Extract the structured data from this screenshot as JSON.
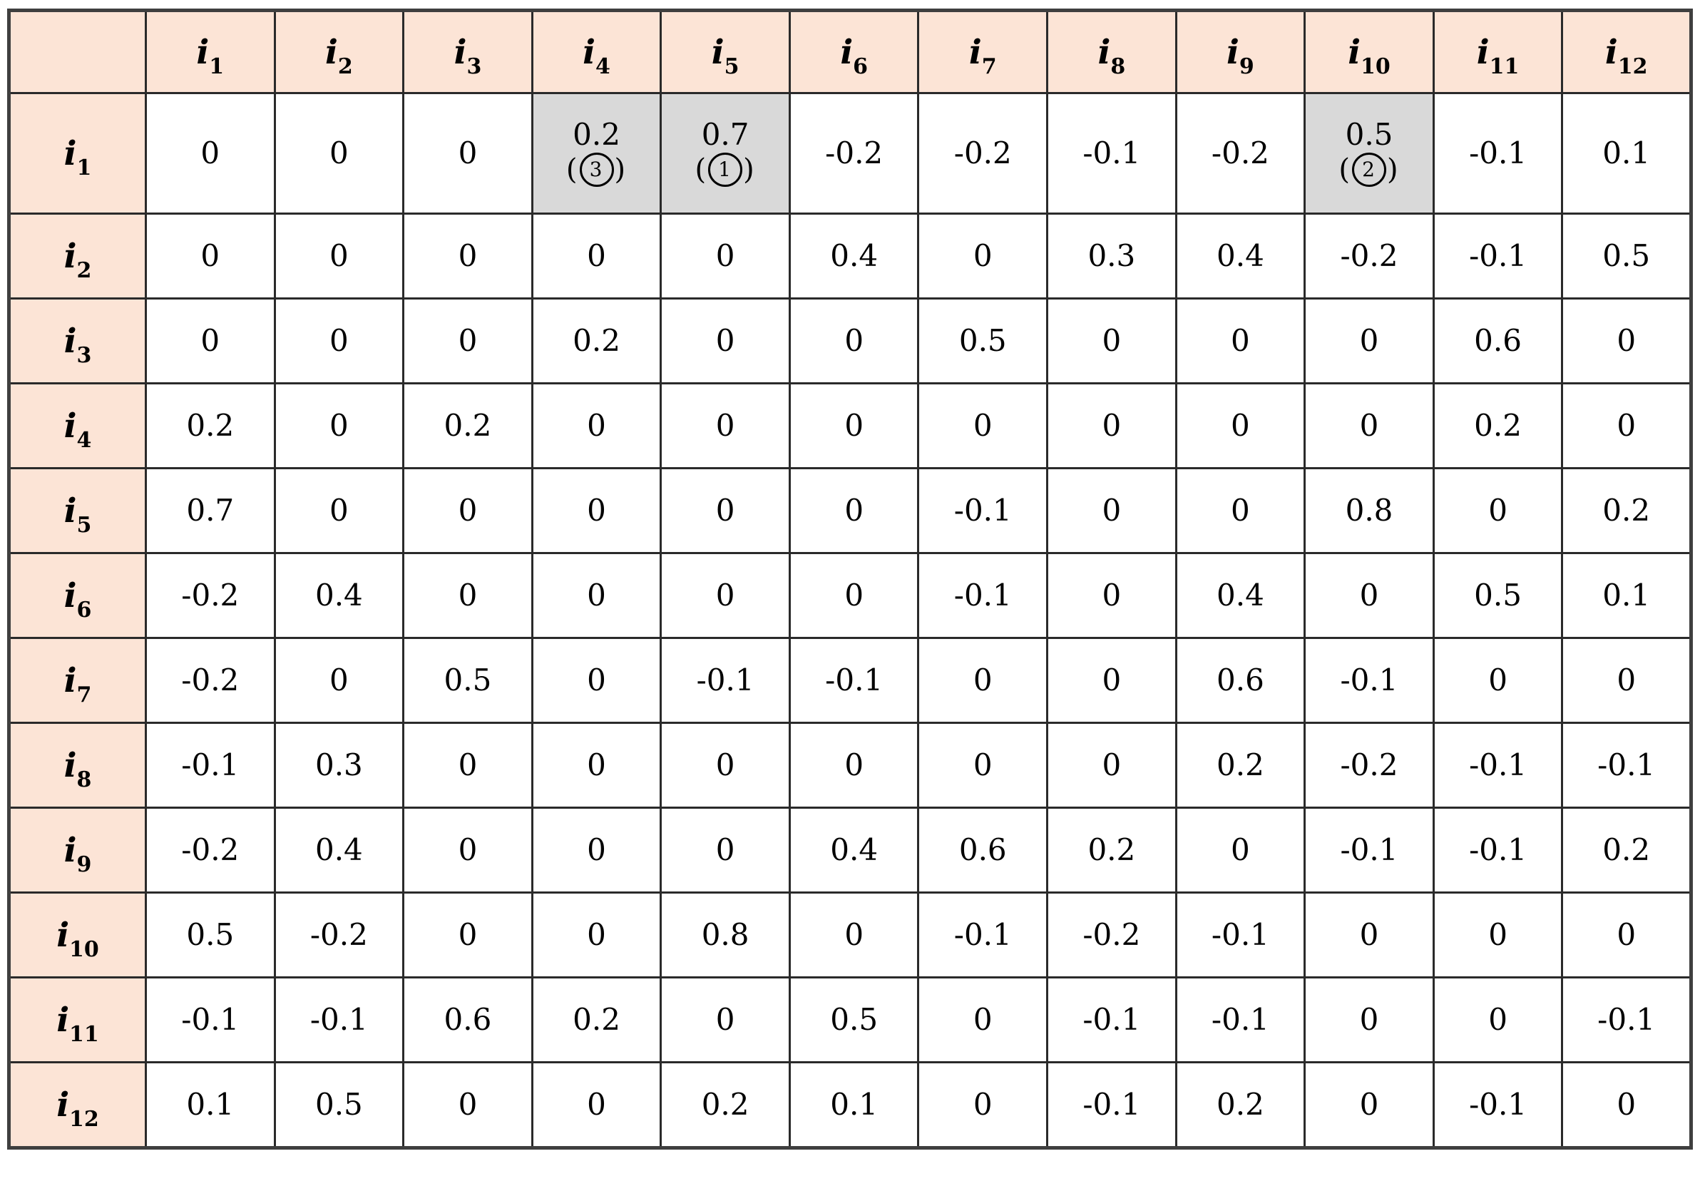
{
  "table": {
    "corner_label": "",
    "note_open": "(",
    "note_close": ")",
    "colors": {
      "header_bg": "#fce4d6",
      "highlight_bg": "#d9d9d9",
      "cell_bg": "#ffffff",
      "border": "#2a2a2a",
      "text": "#000000"
    },
    "col_headers": [
      {
        "base": "i",
        "sub": "1"
      },
      {
        "base": "i",
        "sub": "2"
      },
      {
        "base": "i",
        "sub": "3"
      },
      {
        "base": "i",
        "sub": "4"
      },
      {
        "base": "i",
        "sub": "5"
      },
      {
        "base": "i",
        "sub": "6"
      },
      {
        "base": "i",
        "sub": "7"
      },
      {
        "base": "i",
        "sub": "8"
      },
      {
        "base": "i",
        "sub": "9"
      },
      {
        "base": "i",
        "sub": "10"
      },
      {
        "base": "i",
        "sub": "11"
      },
      {
        "base": "i",
        "sub": "12"
      }
    ],
    "rows": [
      {
        "header": {
          "base": "i",
          "sub": "1"
        },
        "cells": [
          {
            "v": "0"
          },
          {
            "v": "0"
          },
          {
            "v": "0"
          },
          {
            "v": "0.2",
            "note_rank": "3",
            "highlight": true
          },
          {
            "v": "0.7",
            "note_rank": "1",
            "highlight": true
          },
          {
            "v": "-0.2"
          },
          {
            "v": "-0.2"
          },
          {
            "v": "-0.1"
          },
          {
            "v": "-0.2"
          },
          {
            "v": "0.5",
            "note_rank": "2",
            "highlight": true
          },
          {
            "v": "-0.1"
          },
          {
            "v": "0.1"
          }
        ]
      },
      {
        "header": {
          "base": "i",
          "sub": "2"
        },
        "cells": [
          {
            "v": "0"
          },
          {
            "v": "0"
          },
          {
            "v": "0"
          },
          {
            "v": "0"
          },
          {
            "v": "0"
          },
          {
            "v": "0.4"
          },
          {
            "v": "0"
          },
          {
            "v": "0.3"
          },
          {
            "v": "0.4"
          },
          {
            "v": "-0.2"
          },
          {
            "v": "-0.1"
          },
          {
            "v": "0.5"
          }
        ]
      },
      {
        "header": {
          "base": "i",
          "sub": "3"
        },
        "cells": [
          {
            "v": "0"
          },
          {
            "v": "0"
          },
          {
            "v": "0"
          },
          {
            "v": "0.2"
          },
          {
            "v": "0"
          },
          {
            "v": "0"
          },
          {
            "v": "0.5"
          },
          {
            "v": "0"
          },
          {
            "v": "0"
          },
          {
            "v": "0"
          },
          {
            "v": "0.6"
          },
          {
            "v": "0"
          }
        ]
      },
      {
        "header": {
          "base": "i",
          "sub": "4"
        },
        "cells": [
          {
            "v": "0.2"
          },
          {
            "v": "0"
          },
          {
            "v": "0.2"
          },
          {
            "v": "0"
          },
          {
            "v": "0"
          },
          {
            "v": "0"
          },
          {
            "v": "0"
          },
          {
            "v": "0"
          },
          {
            "v": "0"
          },
          {
            "v": "0"
          },
          {
            "v": "0.2"
          },
          {
            "v": "0"
          }
        ]
      },
      {
        "header": {
          "base": "i",
          "sub": "5"
        },
        "cells": [
          {
            "v": "0.7"
          },
          {
            "v": "0"
          },
          {
            "v": "0"
          },
          {
            "v": "0"
          },
          {
            "v": "0"
          },
          {
            "v": "0"
          },
          {
            "v": "-0.1"
          },
          {
            "v": "0"
          },
          {
            "v": "0"
          },
          {
            "v": "0.8"
          },
          {
            "v": "0"
          },
          {
            "v": "0.2"
          }
        ]
      },
      {
        "header": {
          "base": "i",
          "sub": "6"
        },
        "cells": [
          {
            "v": "-0.2"
          },
          {
            "v": "0.4"
          },
          {
            "v": "0"
          },
          {
            "v": "0"
          },
          {
            "v": "0"
          },
          {
            "v": "0"
          },
          {
            "v": "-0.1"
          },
          {
            "v": "0"
          },
          {
            "v": "0.4"
          },
          {
            "v": "0"
          },
          {
            "v": "0.5"
          },
          {
            "v": "0.1"
          }
        ]
      },
      {
        "header": {
          "base": "i",
          "sub": "7"
        },
        "cells": [
          {
            "v": "-0.2"
          },
          {
            "v": "0"
          },
          {
            "v": "0.5"
          },
          {
            "v": "0"
          },
          {
            "v": "-0.1"
          },
          {
            "v": "-0.1"
          },
          {
            "v": "0"
          },
          {
            "v": "0"
          },
          {
            "v": "0.6"
          },
          {
            "v": "-0.1"
          },
          {
            "v": "0"
          },
          {
            "v": "0"
          }
        ]
      },
      {
        "header": {
          "base": "i",
          "sub": "8"
        },
        "cells": [
          {
            "v": "-0.1"
          },
          {
            "v": "0.3"
          },
          {
            "v": "0"
          },
          {
            "v": "0"
          },
          {
            "v": "0"
          },
          {
            "v": "0"
          },
          {
            "v": "0"
          },
          {
            "v": "0"
          },
          {
            "v": "0.2"
          },
          {
            "v": "-0.2"
          },
          {
            "v": "-0.1"
          },
          {
            "v": "-0.1"
          }
        ]
      },
      {
        "header": {
          "base": "i",
          "sub": "9"
        },
        "cells": [
          {
            "v": "-0.2"
          },
          {
            "v": "0.4"
          },
          {
            "v": "0"
          },
          {
            "v": "0"
          },
          {
            "v": "0"
          },
          {
            "v": "0.4"
          },
          {
            "v": "0.6"
          },
          {
            "v": "0.2"
          },
          {
            "v": "0"
          },
          {
            "v": "-0.1"
          },
          {
            "v": "-0.1"
          },
          {
            "v": "0.2"
          }
        ]
      },
      {
        "header": {
          "base": "i",
          "sub": "10"
        },
        "cells": [
          {
            "v": "0.5"
          },
          {
            "v": "-0.2"
          },
          {
            "v": "0"
          },
          {
            "v": "0"
          },
          {
            "v": "0.8"
          },
          {
            "v": "0"
          },
          {
            "v": "-0.1"
          },
          {
            "v": "-0.2"
          },
          {
            "v": "-0.1"
          },
          {
            "v": "0"
          },
          {
            "v": "0"
          },
          {
            "v": "0"
          }
        ]
      },
      {
        "header": {
          "base": "i",
          "sub": "11"
        },
        "cells": [
          {
            "v": "-0.1"
          },
          {
            "v": "-0.1"
          },
          {
            "v": "0.6"
          },
          {
            "v": "0.2"
          },
          {
            "v": "0"
          },
          {
            "v": "0.5"
          },
          {
            "v": "0"
          },
          {
            "v": "-0.1"
          },
          {
            "v": "-0.1"
          },
          {
            "v": "0"
          },
          {
            "v": "0"
          },
          {
            "v": "-0.1"
          }
        ]
      },
      {
        "header": {
          "base": "i",
          "sub": "12"
        },
        "cells": [
          {
            "v": "0.1"
          },
          {
            "v": "0.5"
          },
          {
            "v": "0"
          },
          {
            "v": "0"
          },
          {
            "v": "0.2"
          },
          {
            "v": "0.1"
          },
          {
            "v": "0"
          },
          {
            "v": "-0.1"
          },
          {
            "v": "0.2"
          },
          {
            "v": "0"
          },
          {
            "v": "-0.1"
          },
          {
            "v": "0"
          }
        ]
      }
    ]
  },
  "chart_data": {
    "type": "table",
    "title": "",
    "row_labels": [
      "i1",
      "i2",
      "i3",
      "i4",
      "i5",
      "i6",
      "i7",
      "i8",
      "i9",
      "i10",
      "i11",
      "i12"
    ],
    "col_labels": [
      "i1",
      "i2",
      "i3",
      "i4",
      "i5",
      "i6",
      "i7",
      "i8",
      "i9",
      "i10",
      "i11",
      "i12"
    ],
    "matrix": [
      [
        0,
        0,
        0,
        0.2,
        0.7,
        -0.2,
        -0.2,
        -0.1,
        -0.2,
        0.5,
        -0.1,
        0.1
      ],
      [
        0,
        0,
        0,
        0,
        0,
        0.4,
        0,
        0.3,
        0.4,
        -0.2,
        -0.1,
        0.5
      ],
      [
        0,
        0,
        0,
        0.2,
        0,
        0,
        0.5,
        0,
        0,
        0,
        0.6,
        0
      ],
      [
        0.2,
        0,
        0.2,
        0,
        0,
        0,
        0,
        0,
        0,
        0,
        0.2,
        0
      ],
      [
        0.7,
        0,
        0,
        0,
        0,
        0,
        -0.1,
        0,
        0,
        0.8,
        0,
        0.2
      ],
      [
        -0.2,
        0.4,
        0,
        0,
        0,
        0,
        -0.1,
        0,
        0.4,
        0,
        0.5,
        0.1
      ],
      [
        -0.2,
        0,
        0.5,
        0,
        -0.1,
        -0.1,
        0,
        0,
        0.6,
        -0.1,
        0,
        0
      ],
      [
        -0.1,
        0.3,
        0,
        0,
        0,
        0,
        0,
        0,
        0.2,
        -0.2,
        -0.1,
        -0.1
      ],
      [
        -0.2,
        0.4,
        0,
        0,
        0,
        0.4,
        0.6,
        0.2,
        0,
        -0.1,
        -0.1,
        0.2
      ],
      [
        0.5,
        -0.2,
        0,
        0,
        0.8,
        0,
        -0.1,
        -0.2,
        -0.1,
        0,
        0,
        0
      ],
      [
        -0.1,
        -0.1,
        0.6,
        0.2,
        0,
        0.5,
        0,
        -0.1,
        -0.1,
        0,
        0,
        -0.1
      ],
      [
        0.1,
        0.5,
        0,
        0,
        0.2,
        0.1,
        0,
        -0.1,
        0.2,
        0,
        -0.1,
        0
      ]
    ],
    "highlights": [
      {
        "row": "i1",
        "col": "i4",
        "value": 0.2,
        "rank": 3
      },
      {
        "row": "i1",
        "col": "i5",
        "value": 0.7,
        "rank": 1
      },
      {
        "row": "i1",
        "col": "i10",
        "value": 0.5,
        "rank": 2
      }
    ],
    "layout_hints": {
      "header_fill": "#fce4d6",
      "highlight_fill": "#d9d9d9",
      "grid": "on",
      "symmetric": true
    }
  }
}
